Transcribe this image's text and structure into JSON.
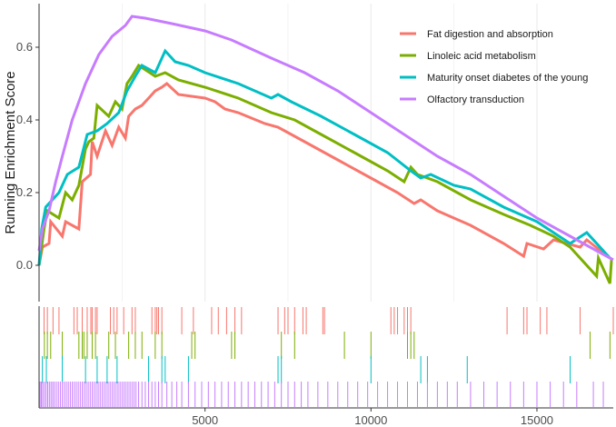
{
  "chart_data": {
    "type": "line",
    "ylabel": "Running Enrichment Score",
    "xlim": [
      0,
      17300
    ],
    "ylim": [
      -0.1,
      0.72
    ],
    "x_ticks": [
      5000,
      10000,
      15000
    ],
    "x_tick_labels": [
      "5000",
      "10000",
      "15000"
    ],
    "y_ticks": [
      0.0,
      0.2,
      0.4,
      0.6
    ],
    "y_tick_labels": [
      "0.0",
      "0.2",
      "0.4",
      "0.6"
    ],
    "grid": true,
    "legend_position": "top-right",
    "series": [
      {
        "name": "Fat digestion and absorption",
        "color": "#F8766D",
        "points": [
          [
            0,
            0.0
          ],
          [
            100,
            0.05
          ],
          [
            300,
            0.06
          ],
          [
            350,
            0.12
          ],
          [
            700,
            0.08
          ],
          [
            800,
            0.12
          ],
          [
            1200,
            0.1
          ],
          [
            1300,
            0.23
          ],
          [
            1550,
            0.25
          ],
          [
            1600,
            0.34
          ],
          [
            1750,
            0.3
          ],
          [
            2000,
            0.37
          ],
          [
            2200,
            0.33
          ],
          [
            2400,
            0.38
          ],
          [
            2600,
            0.35
          ],
          [
            2700,
            0.41
          ],
          [
            2900,
            0.43
          ],
          [
            3100,
            0.44
          ],
          [
            3300,
            0.46
          ],
          [
            3500,
            0.48
          ],
          [
            3700,
            0.49
          ],
          [
            3850,
            0.5
          ],
          [
            4200,
            0.47
          ],
          [
            5000,
            0.46
          ],
          [
            5300,
            0.45
          ],
          [
            5600,
            0.43
          ],
          [
            6000,
            0.42
          ],
          [
            6800,
            0.39
          ],
          [
            7200,
            0.38
          ],
          [
            7400,
            0.37
          ],
          [
            8000,
            0.34
          ],
          [
            9000,
            0.29
          ],
          [
            10000,
            0.24
          ],
          [
            10800,
            0.2
          ],
          [
            11300,
            0.17
          ],
          [
            11500,
            0.18
          ],
          [
            12000,
            0.15
          ],
          [
            13000,
            0.11
          ],
          [
            14000,
            0.06
          ],
          [
            14600,
            0.025
          ],
          [
            14700,
            0.06
          ],
          [
            15200,
            0.045
          ],
          [
            15500,
            0.07
          ],
          [
            16300,
            0.05
          ],
          [
            16500,
            0.07
          ],
          [
            17200,
            0.02
          ]
        ]
      },
      {
        "name": "Linoleic acid metabolism",
        "color": "#7CAE00",
        "points": [
          [
            0,
            0.0
          ],
          [
            150,
            0.1
          ],
          [
            250,
            0.15
          ],
          [
            600,
            0.13
          ],
          [
            800,
            0.2
          ],
          [
            1000,
            0.18
          ],
          [
            1200,
            0.22
          ],
          [
            1400,
            0.32
          ],
          [
            1500,
            0.34
          ],
          [
            1650,
            0.35
          ],
          [
            1750,
            0.44
          ],
          [
            2100,
            0.41
          ],
          [
            2300,
            0.45
          ],
          [
            2500,
            0.43
          ],
          [
            2650,
            0.5
          ],
          [
            2800,
            0.52
          ],
          [
            3000,
            0.55
          ],
          [
            3500,
            0.52
          ],
          [
            3800,
            0.53
          ],
          [
            4200,
            0.51
          ],
          [
            5000,
            0.49
          ],
          [
            6000,
            0.46
          ],
          [
            7000,
            0.42
          ],
          [
            7700,
            0.4
          ],
          [
            8500,
            0.36
          ],
          [
            9500,
            0.31
          ],
          [
            10500,
            0.26
          ],
          [
            11000,
            0.23
          ],
          [
            11200,
            0.27
          ],
          [
            11400,
            0.25
          ],
          [
            12000,
            0.23
          ],
          [
            13000,
            0.18
          ],
          [
            14000,
            0.14
          ],
          [
            14800,
            0.11
          ],
          [
            15500,
            0.08
          ],
          [
            16000,
            0.05
          ],
          [
            16800,
            -0.03
          ],
          [
            16850,
            0.02
          ],
          [
            17200,
            -0.05
          ],
          [
            17250,
            0.02
          ]
        ]
      },
      {
        "name": "Maturity onset diabetes of the young",
        "color": "#00BFC4",
        "points": [
          [
            0,
            0.0
          ],
          [
            80,
            0.1
          ],
          [
            200,
            0.16
          ],
          [
            600,
            0.2
          ],
          [
            850,
            0.25
          ],
          [
            1200,
            0.27
          ],
          [
            1450,
            0.36
          ],
          [
            1750,
            0.37
          ],
          [
            2050,
            0.39
          ],
          [
            2400,
            0.42
          ],
          [
            2650,
            0.48
          ],
          [
            2900,
            0.52
          ],
          [
            3100,
            0.55
          ],
          [
            3500,
            0.53
          ],
          [
            3800,
            0.59
          ],
          [
            4100,
            0.56
          ],
          [
            4500,
            0.55
          ],
          [
            5000,
            0.53
          ],
          [
            6000,
            0.5
          ],
          [
            7000,
            0.46
          ],
          [
            7200,
            0.47
          ],
          [
            7600,
            0.45
          ],
          [
            8500,
            0.41
          ],
          [
            9500,
            0.36
          ],
          [
            10500,
            0.31
          ],
          [
            11200,
            0.26
          ],
          [
            11500,
            0.24
          ],
          [
            11800,
            0.25
          ],
          [
            12500,
            0.22
          ],
          [
            13000,
            0.21
          ],
          [
            14000,
            0.16
          ],
          [
            15000,
            0.12
          ],
          [
            16000,
            0.06
          ],
          [
            16500,
            0.09
          ],
          [
            17200,
            0.02
          ]
        ]
      },
      {
        "name": "Olfactory transduction",
        "color": "#C77CFF",
        "points": [
          [
            0,
            0.04
          ],
          [
            100,
            0.1
          ],
          [
            300,
            0.15
          ],
          [
            500,
            0.23
          ],
          [
            700,
            0.3
          ],
          [
            1000,
            0.4
          ],
          [
            1400,
            0.5
          ],
          [
            1800,
            0.58
          ],
          [
            2200,
            0.63
          ],
          [
            2600,
            0.66
          ],
          [
            2800,
            0.685
          ],
          [
            3200,
            0.68
          ],
          [
            4000,
            0.665
          ],
          [
            5000,
            0.645
          ],
          [
            5800,
            0.62
          ],
          [
            7000,
            0.57
          ],
          [
            8000,
            0.53
          ],
          [
            9000,
            0.48
          ],
          [
            10000,
            0.42
          ],
          [
            11000,
            0.36
          ],
          [
            12000,
            0.3
          ],
          [
            13000,
            0.25
          ],
          [
            14000,
            0.19
          ],
          [
            15000,
            0.13
          ],
          [
            16000,
            0.08
          ],
          [
            17000,
            0.03
          ],
          [
            17300,
            0.015
          ]
        ]
      }
    ],
    "hit_positions": [
      [
        150,
        250,
        420,
        600,
        1050,
        1150,
        1300,
        1450,
        1560,
        1600,
        1700,
        1750,
        2150,
        2250,
        2350,
        2550,
        2800,
        2900,
        3400,
        3500,
        3550,
        3600,
        3700,
        4300,
        4650,
        5200,
        5400,
        5650,
        5900,
        6100,
        7200,
        7400,
        7500,
        7700,
        7950,
        8050,
        8550,
        8600,
        10600,
        10700,
        10800,
        11000,
        11100,
        11200,
        14100,
        14600,
        14700,
        15100,
        15300,
        16300,
        17300
      ],
      [
        160,
        250,
        350,
        700,
        1200,
        1300,
        1350,
        1450,
        1600,
        1700,
        2100,
        2300,
        2700,
        2900,
        3100,
        3500,
        3700,
        4600,
        4700,
        5800,
        5900,
        7300,
        7700,
        9200,
        10000,
        11100,
        11200,
        11300,
        16600,
        17200
      ],
      [
        100,
        220,
        700,
        1400,
        1750,
        2050,
        2350,
        3300,
        3700,
        3800,
        4500,
        7200,
        7300,
        10000,
        11500,
        11700,
        12900,
        16000
      ],
      [
        30,
        70,
        110,
        160,
        210,
        260,
        310,
        360,
        410,
        460,
        520,
        580,
        640,
        700,
        760,
        820,
        880,
        940,
        1000,
        1060,
        1120,
        1180,
        1240,
        1300,
        1360,
        1420,
        1480,
        1540,
        1600,
        1660,
        1720,
        1780,
        1840,
        1900,
        1960,
        2020,
        2080,
        2140,
        2200,
        2260,
        2320,
        2380,
        2440,
        2500,
        2560,
        2620,
        2680,
        2740,
        2800,
        2860,
        2920,
        3000,
        3100,
        3200,
        3300,
        3400,
        3500,
        3600,
        3700,
        3850,
        4000,
        4150,
        4300,
        4500,
        4700,
        4900,
        5100,
        5300,
        5500,
        5700,
        5900,
        6100,
        6300,
        6500,
        6700,
        6900,
        7100,
        7300,
        7500,
        7700,
        7900,
        8100,
        8400,
        8700,
        9000,
        9300,
        9600,
        9900,
        10200,
        10500,
        10800,
        11100,
        11400,
        11700,
        12000,
        12300,
        12600,
        13000,
        13400,
        13800,
        14200,
        14600,
        15000,
        15400,
        15800,
        16200,
        16700,
        17000
      ]
    ]
  }
}
